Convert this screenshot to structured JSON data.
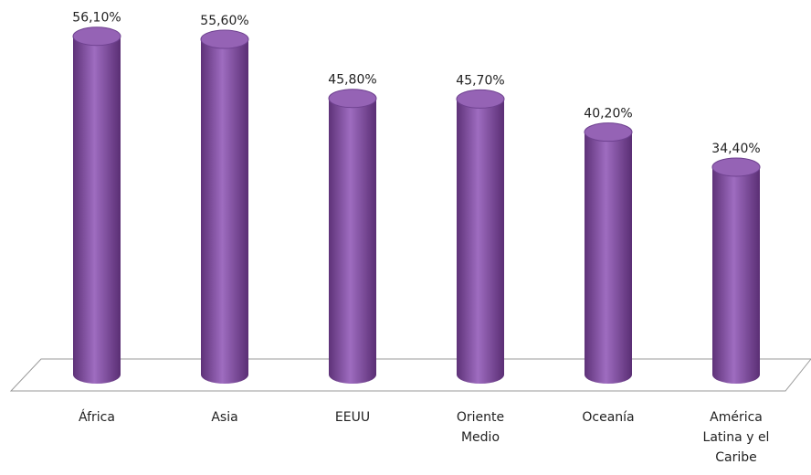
{
  "chart_data": {
    "type": "bar",
    "categories": [
      "África",
      "Asia",
      "EEUU",
      "Oriente Medio",
      "Oceanía",
      "América Latina y el Caribe"
    ],
    "values": [
      56.1,
      55.6,
      45.8,
      45.7,
      40.2,
      34.4
    ],
    "value_labels": [
      "56,10%",
      "55,60%",
      "45,80%",
      "45,70%",
      "40,20%",
      "34,40%"
    ],
    "color": "#8a55a8"
  }
}
